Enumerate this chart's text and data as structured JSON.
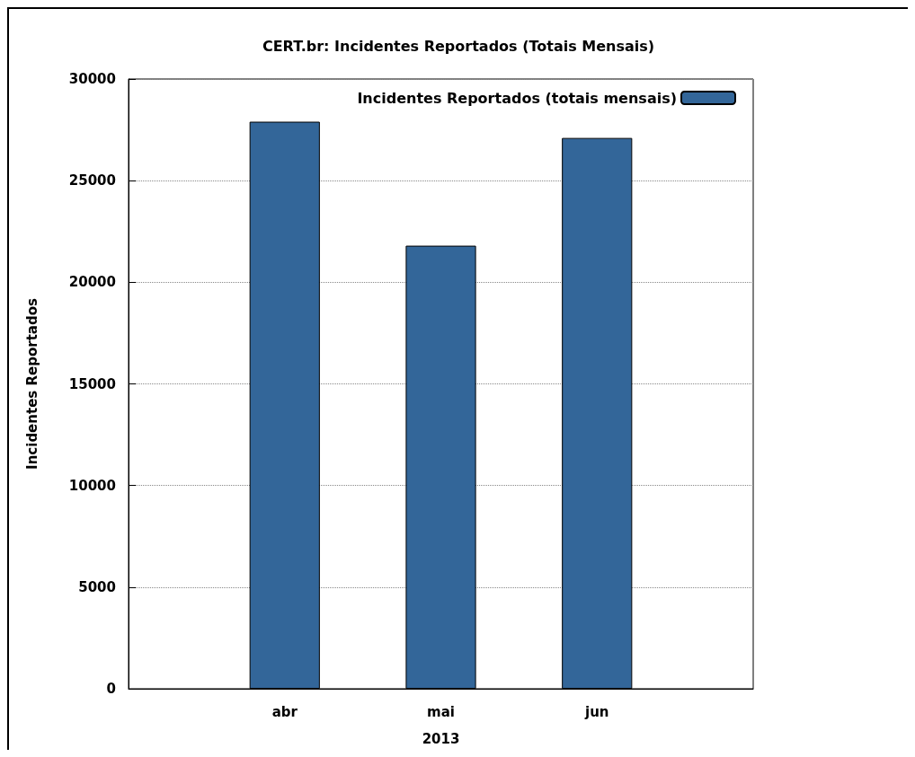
{
  "chart_data": {
    "type": "bar",
    "title": "CERT.br: Incidentes Reportados (Totais Mensais)",
    "xlabel": "2013",
    "ylabel": "Incidentes Reportados",
    "categories": [
      "abr",
      "mai",
      "jun"
    ],
    "series": [
      {
        "name": "Incidentes Reportados (totais mensais)",
        "color": "#336699",
        "values": [
          27900,
          21800,
          27100
        ]
      }
    ],
    "ylim": [
      0,
      30000
    ],
    "yticks": [
      0,
      5000,
      10000,
      15000,
      20000,
      25000,
      30000
    ],
    "grid": "y",
    "legend": "top right"
  }
}
